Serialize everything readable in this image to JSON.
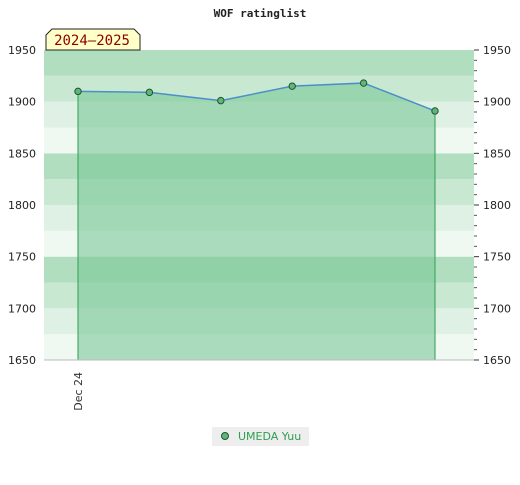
{
  "chart_data": {
    "type": "area",
    "title": "WOF ratinglist",
    "season_label": "2024–2025",
    "xlabel": "",
    "ylabel": "",
    "ylim": [
      1650,
      1950
    ],
    "y_ticks": [
      1650,
      1700,
      1750,
      1800,
      1850,
      1900,
      1950
    ],
    "y_tick_labels": [
      "1650",
      "1700",
      "1750",
      "1800",
      "1850",
      "1900",
      "1950"
    ],
    "x_tick_labels": [
      "Dec 24"
    ],
    "legend": {
      "placement": "bottom-center"
    },
    "grid": true,
    "series": [
      {
        "name": "UMEDA Yuu",
        "color": "#2e9e4f",
        "line_color": "#4a90c8",
        "fill_color": "#7ac897",
        "values": [
          1910,
          1909,
          1901,
          1915,
          1918,
          1891
        ]
      }
    ]
  }
}
